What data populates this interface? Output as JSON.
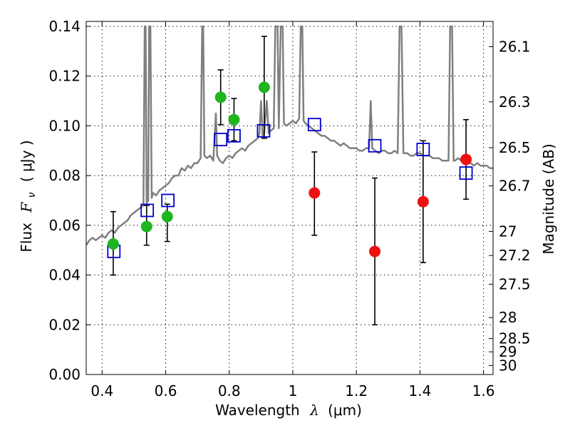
{
  "chart_data": {
    "type": "scatter",
    "xlabel_prefix": "Wavelength",
    "xlabel_symbol": "λ",
    "xlabel_unit": "(μm)",
    "ylabel_prefix": "Flux",
    "ylabel_symbol": "F",
    "ylabel_subscript": "ν",
    "ylabel_unit": "( μJy )",
    "ylabel_right": "Magnitude (AB)",
    "xlim": [
      0.35,
      1.63
    ],
    "ylim": [
      0.0,
      0.142
    ],
    "xticks": [
      {
        "value": 0.4,
        "label": "0.4"
      },
      {
        "value": 0.6,
        "label": "0.6"
      },
      {
        "value": 0.8,
        "label": "0.8"
      },
      {
        "value": 1.0,
        "label": "1"
      },
      {
        "value": 1.2,
        "label": "1.2"
      },
      {
        "value": 1.4,
        "label": "1.4"
      },
      {
        "value": 1.6,
        "label": "1.6"
      }
    ],
    "yticks": [
      {
        "value": 0.0,
        "label": "0.00"
      },
      {
        "value": 0.02,
        "label": "0.02"
      },
      {
        "value": 0.04,
        "label": "0.04"
      },
      {
        "value": 0.06,
        "label": "0.06"
      },
      {
        "value": 0.08,
        "label": "0.08"
      },
      {
        "value": 0.1,
        "label": "0.10"
      },
      {
        "value": 0.12,
        "label": "0.12"
      },
      {
        "value": 0.14,
        "label": "0.14"
      }
    ],
    "mag_ticks": [
      {
        "mag": 26.1,
        "label": "26.1"
      },
      {
        "mag": 26.3,
        "label": "26.3"
      },
      {
        "mag": 26.5,
        "label": "26.5"
      },
      {
        "mag": 26.7,
        "label": "26.7"
      },
      {
        "mag": 27.0,
        "label": "27"
      },
      {
        "mag": 27.2,
        "label": "27.2"
      },
      {
        "mag": 27.5,
        "label": "27.5"
      },
      {
        "mag": 28.0,
        "label": "28"
      },
      {
        "mag": 28.5,
        "label": "28.5"
      },
      {
        "mag": 29.0,
        "label": "29"
      },
      {
        "mag": 30.0,
        "label": "30"
      }
    ],
    "grid": true,
    "colors": {
      "sed": "#7f7f7f",
      "green": "#1fb51f",
      "red": "#ee1111",
      "model": "#0000cc",
      "errorbar": "#000000"
    },
    "sed": [
      [
        0.35,
        0.052
      ],
      [
        0.36,
        0.054
      ],
      [
        0.37,
        0.055
      ],
      [
        0.38,
        0.054
      ],
      [
        0.39,
        0.055
      ],
      [
        0.4,
        0.056
      ],
      [
        0.41,
        0.055
      ],
      [
        0.42,
        0.057
      ],
      [
        0.43,
        0.058
      ],
      [
        0.44,
        0.057
      ],
      [
        0.45,
        0.059
      ],
      [
        0.46,
        0.06
      ],
      [
        0.47,
        0.061
      ],
      [
        0.48,
        0.062
      ],
      [
        0.49,
        0.064
      ],
      [
        0.5,
        0.065
      ],
      [
        0.51,
        0.066
      ],
      [
        0.52,
        0.067
      ],
      [
        0.53,
        0.068
      ],
      [
        0.534,
        0.14
      ],
      [
        0.537,
        0.14
      ],
      [
        0.54,
        0.069
      ],
      [
        0.545,
        0.07
      ],
      [
        0.548,
        0.14
      ],
      [
        0.552,
        0.14
      ],
      [
        0.556,
        0.071
      ],
      [
        0.56,
        0.073
      ],
      [
        0.57,
        0.072
      ],
      [
        0.58,
        0.074
      ],
      [
        0.59,
        0.075
      ],
      [
        0.6,
        0.076
      ],
      [
        0.61,
        0.077
      ],
      [
        0.62,
        0.079
      ],
      [
        0.63,
        0.08
      ],
      [
        0.64,
        0.08
      ],
      [
        0.65,
        0.083
      ],
      [
        0.66,
        0.082
      ],
      [
        0.67,
        0.084
      ],
      [
        0.68,
        0.083
      ],
      [
        0.69,
        0.085
      ],
      [
        0.7,
        0.085
      ],
      [
        0.71,
        0.087
      ],
      [
        0.715,
        0.14
      ],
      [
        0.718,
        0.14
      ],
      [
        0.722,
        0.088
      ],
      [
        0.73,
        0.087
      ],
      [
        0.74,
        0.088
      ],
      [
        0.75,
        0.086
      ],
      [
        0.758,
        0.105
      ],
      [
        0.762,
        0.088
      ],
      [
        0.77,
        0.086
      ],
      [
        0.78,
        0.085
      ],
      [
        0.79,
        0.087
      ],
      [
        0.8,
        0.088
      ],
      [
        0.81,
        0.087
      ],
      [
        0.82,
        0.089
      ],
      [
        0.83,
        0.09
      ],
      [
        0.84,
        0.091
      ],
      [
        0.85,
        0.09
      ],
      [
        0.86,
        0.092
      ],
      [
        0.87,
        0.093
      ],
      [
        0.88,
        0.094
      ],
      [
        0.89,
        0.095
      ],
      [
        0.895,
        0.097
      ],
      [
        0.9,
        0.11
      ],
      [
        0.905,
        0.096
      ],
      [
        0.91,
        0.097
      ],
      [
        0.918,
        0.11
      ],
      [
        0.924,
        0.097
      ],
      [
        0.93,
        0.098
      ],
      [
        0.94,
        0.099
      ],
      [
        0.945,
        0.14
      ],
      [
        0.952,
        0.14
      ],
      [
        0.956,
        0.099
      ],
      [
        0.962,
        0.14
      ],
      [
        0.968,
        0.14
      ],
      [
        0.972,
        0.101
      ],
      [
        0.98,
        0.1
      ],
      [
        0.99,
        0.101
      ],
      [
        1.0,
        0.102
      ],
      [
        1.01,
        0.101
      ],
      [
        1.02,
        0.103
      ],
      [
        1.025,
        0.14
      ],
      [
        1.03,
        0.14
      ],
      [
        1.034,
        0.102
      ],
      [
        1.04,
        0.101
      ],
      [
        1.05,
        0.1
      ],
      [
        1.06,
        0.099
      ],
      [
        1.07,
        0.098
      ],
      [
        1.08,
        0.097
      ],
      [
        1.09,
        0.096
      ],
      [
        1.1,
        0.096
      ],
      [
        1.11,
        0.095
      ],
      [
        1.12,
        0.094
      ],
      [
        1.13,
        0.094
      ],
      [
        1.14,
        0.093
      ],
      [
        1.15,
        0.092
      ],
      [
        1.16,
        0.093
      ],
      [
        1.17,
        0.092
      ],
      [
        1.18,
        0.091
      ],
      [
        1.19,
        0.091
      ],
      [
        1.2,
        0.091
      ],
      [
        1.21,
        0.09
      ],
      [
        1.22,
        0.09
      ],
      [
        1.23,
        0.091
      ],
      [
        1.24,
        0.091
      ],
      [
        1.245,
        0.11
      ],
      [
        1.25,
        0.091
      ],
      [
        1.26,
        0.09
      ],
      [
        1.27,
        0.089
      ],
      [
        1.28,
        0.09
      ],
      [
        1.29,
        0.09
      ],
      [
        1.3,
        0.089
      ],
      [
        1.31,
        0.089
      ],
      [
        1.32,
        0.09
      ],
      [
        1.33,
        0.089
      ],
      [
        1.336,
        0.14
      ],
      [
        1.342,
        0.14
      ],
      [
        1.348,
        0.089
      ],
      [
        1.36,
        0.089
      ],
      [
        1.37,
        0.088
      ],
      [
        1.38,
        0.088
      ],
      [
        1.39,
        0.089
      ],
      [
        1.4,
        0.089
      ],
      [
        1.41,
        0.088
      ],
      [
        1.42,
        0.088
      ],
      [
        1.43,
        0.088
      ],
      [
        1.44,
        0.087
      ],
      [
        1.45,
        0.087
      ],
      [
        1.46,
        0.087
      ],
      [
        1.47,
        0.086
      ],
      [
        1.48,
        0.086
      ],
      [
        1.49,
        0.086
      ],
      [
        1.495,
        0.14
      ],
      [
        1.501,
        0.14
      ],
      [
        1.506,
        0.086
      ],
      [
        1.51,
        0.086
      ],
      [
        1.52,
        0.087
      ],
      [
        1.53,
        0.086
      ],
      [
        1.54,
        0.085
      ],
      [
        1.55,
        0.085
      ],
      [
        1.56,
        0.085
      ],
      [
        1.57,
        0.084
      ],
      [
        1.58,
        0.085
      ],
      [
        1.59,
        0.084
      ],
      [
        1.6,
        0.084
      ],
      [
        1.61,
        0.084
      ],
      [
        1.62,
        0.083
      ],
      [
        1.63,
        0.083
      ]
    ],
    "green_points": [
      {
        "x": 0.435,
        "y": 0.0525,
        "yerr_lo": 0.04,
        "yerr_hi": 0.0655
      },
      {
        "x": 0.54,
        "y": 0.0595,
        "yerr_lo": 0.052,
        "yerr_hi": 0.068
      },
      {
        "x": 0.605,
        "y": 0.0635,
        "yerr_lo": 0.0535,
        "yerr_hi": 0.0685
      },
      {
        "x": 0.773,
        "y": 0.1115,
        "yerr_lo": 0.1005,
        "yerr_hi": 0.1225
      },
      {
        "x": 0.815,
        "y": 0.1025,
        "yerr_lo": 0.094,
        "yerr_hi": 0.111
      },
      {
        "x": 0.91,
        "y": 0.1155,
        "yerr_lo": 0.095,
        "yerr_hi": 0.136
      }
    ],
    "red_points": [
      {
        "x": 1.068,
        "y": 0.073,
        "yerr_lo": 0.056,
        "yerr_hi": 0.0895
      },
      {
        "x": 1.258,
        "y": 0.0495,
        "yerr_lo": 0.02,
        "yerr_hi": 0.079
      },
      {
        "x": 1.41,
        "y": 0.0695,
        "yerr_lo": 0.045,
        "yerr_hi": 0.094
      },
      {
        "x": 1.545,
        "y": 0.0865,
        "yerr_lo": 0.0705,
        "yerr_hi": 0.1025
      }
    ],
    "model_points": [
      {
        "x": 0.437,
        "y": 0.0495
      },
      {
        "x": 0.542,
        "y": 0.066
      },
      {
        "x": 0.607,
        "y": 0.07
      },
      {
        "x": 0.773,
        "y": 0.0945
      },
      {
        "x": 0.815,
        "y": 0.096
      },
      {
        "x": 0.908,
        "y": 0.098
      },
      {
        "x": 1.068,
        "y": 0.1005
      },
      {
        "x": 1.258,
        "y": 0.092
      },
      {
        "x": 1.41,
        "y": 0.0905
      },
      {
        "x": 1.545,
        "y": 0.081
      }
    ]
  }
}
